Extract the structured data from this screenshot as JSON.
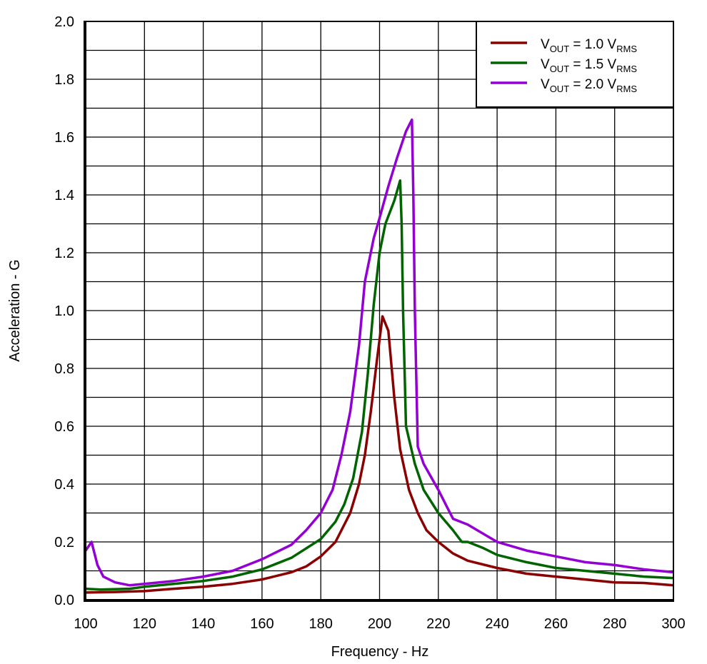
{
  "chart_data": {
    "type": "line",
    "title": "",
    "xlabel": "Frequency - Hz",
    "ylabel": "Acceleration - G",
    "xlim": [
      100,
      300
    ],
    "ylim": [
      0,
      2.0
    ],
    "xticks": [
      "100",
      "120",
      "140",
      "160",
      "180",
      "200",
      "220",
      "240",
      "260",
      "280",
      "300"
    ],
    "yticks": [
      "0.0",
      "0.2",
      "0.4",
      "0.6",
      "0.8",
      "1.0",
      "1.2",
      "1.4",
      "1.6",
      "1.8",
      "2.0"
    ],
    "grid": true,
    "legend_position": "top-right",
    "series": [
      {
        "name_main": "V",
        "name_sub": "OUT",
        "name_mid": " = 1.0 V",
        "name_sub2": "RMS",
        "color": "#8b0000",
        "x": [
          100,
          110,
          120,
          130,
          140,
          150,
          160,
          170,
          175,
          180,
          185,
          190,
          193,
          195,
          197,
          199,
          201,
          203,
          205,
          207,
          210,
          213,
          216,
          220,
          225,
          230,
          240,
          250,
          260,
          270,
          280,
          290,
          300
        ],
        "y": [
          0.025,
          0.027,
          0.03,
          0.038,
          0.045,
          0.055,
          0.07,
          0.095,
          0.115,
          0.15,
          0.2,
          0.3,
          0.4,
          0.5,
          0.65,
          0.82,
          0.98,
          0.93,
          0.7,
          0.52,
          0.38,
          0.3,
          0.24,
          0.2,
          0.16,
          0.135,
          0.11,
          0.09,
          0.08,
          0.07,
          0.06,
          0.058,
          0.05
        ]
      },
      {
        "name_main": "V",
        "name_sub": "OUT",
        "name_mid": " = 1.5 V",
        "name_sub2": "RMS",
        "color": "#006400",
        "x": [
          100,
          105,
          115,
          120,
          130,
          140,
          150,
          160,
          170,
          180,
          185,
          188,
          191,
          194,
          196,
          198,
          200,
          202,
          205,
          207,
          207.5,
          208,
          209,
          212,
          215,
          220,
          225,
          228,
          230,
          235,
          240,
          250,
          260,
          270,
          280,
          290,
          300
        ],
        "y": [
          0.038,
          0.035,
          0.038,
          0.045,
          0.055,
          0.065,
          0.08,
          0.105,
          0.145,
          0.21,
          0.27,
          0.33,
          0.42,
          0.58,
          0.78,
          1.02,
          1.2,
          1.3,
          1.38,
          1.45,
          1.3,
          1.0,
          0.6,
          0.47,
          0.38,
          0.3,
          0.24,
          0.2,
          0.2,
          0.18,
          0.155,
          0.13,
          0.11,
          0.1,
          0.09,
          0.08,
          0.075
        ]
      },
      {
        "name_main": "V",
        "name_sub": "OUT",
        "name_mid": " = 2.0 V",
        "name_sub2": "RMS",
        "color": "#9400d3",
        "x": [
          100,
          102,
          104,
          106,
          110,
          115,
          120,
          130,
          140,
          150,
          160,
          170,
          175,
          180,
          184,
          187,
          190,
          193,
          195,
          198,
          200,
          203,
          206,
          209,
          211,
          211.5,
          212,
          213,
          215,
          220,
          223,
          225,
          230,
          235,
          240,
          250,
          260,
          270,
          280,
          290,
          300
        ],
        "y": [
          0.17,
          0.2,
          0.12,
          0.08,
          0.06,
          0.05,
          0.055,
          0.065,
          0.08,
          0.1,
          0.14,
          0.19,
          0.24,
          0.3,
          0.38,
          0.5,
          0.65,
          0.88,
          1.1,
          1.25,
          1.32,
          1.43,
          1.53,
          1.62,
          1.66,
          1.4,
          1.0,
          0.53,
          0.47,
          0.38,
          0.32,
          0.28,
          0.26,
          0.23,
          0.2,
          0.17,
          0.15,
          0.13,
          0.12,
          0.105,
          0.095
        ]
      }
    ]
  }
}
